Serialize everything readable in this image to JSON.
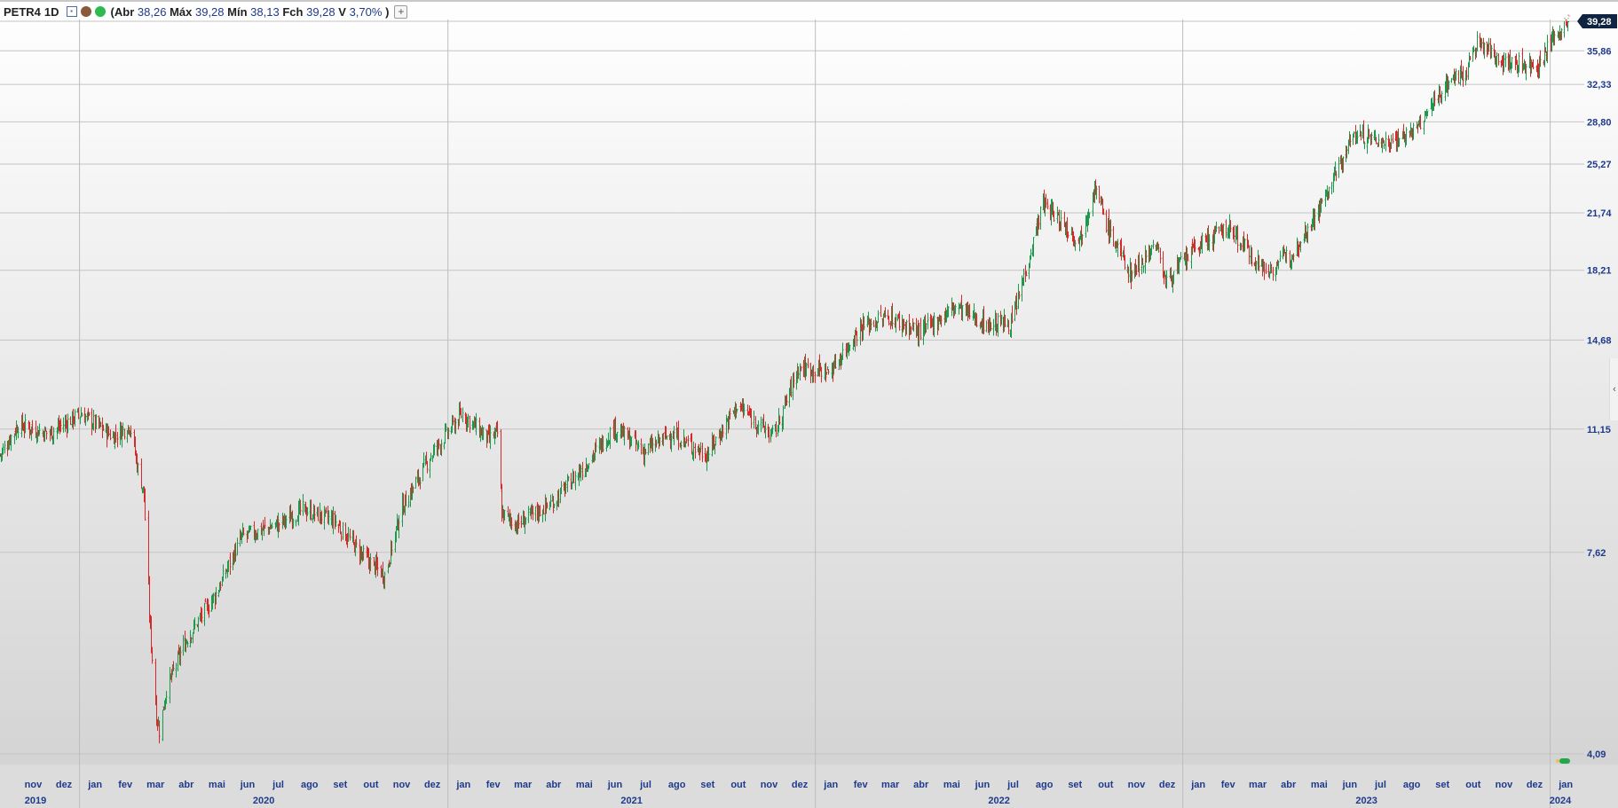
{
  "header": {
    "symbol": "PETR4",
    "timeframe": "1D",
    "open_paren": "(",
    "open_label": "Abr",
    "open_value": "38,26",
    "high_label": "Máx",
    "high_value": "39,28",
    "low_label": "Mín",
    "low_value": "38,13",
    "close_label": "Fch",
    "close_value": "39,28",
    "change_label": "V",
    "change_value": "3,70%",
    "close_paren": ")",
    "plus_label": "+",
    "icons": [
      "chart-type-icon",
      "settings-brown-icon",
      "live-green-icon"
    ],
    "colors": {
      "icon_brown": "#8a5a3b",
      "icon_green": "#2dbb4f"
    }
  },
  "chart_data": {
    "type": "candlestick",
    "title": "",
    "xlabel": "",
    "ylabel": "",
    "y_scale": "log",
    "ylim": [
      4.09,
      39.28
    ],
    "y_ticks": [
      "39,28",
      "35,86",
      "32,33",
      "28,80",
      "25,27",
      "21,74",
      "18,21",
      "14,68",
      "11,15",
      "7,62",
      "4,09"
    ],
    "last_price": "39,28",
    "month_labels": [
      "nov",
      "dez",
      "jan",
      "fev",
      "mar",
      "abr",
      "mai",
      "jun",
      "jul",
      "ago",
      "set",
      "out",
      "nov",
      "dez",
      "jan",
      "fev",
      "mar",
      "abr",
      "mai",
      "jun",
      "jul",
      "ago",
      "set",
      "out",
      "nov",
      "dez",
      "jan",
      "fev",
      "mar",
      "abr",
      "mai",
      "jun",
      "jul",
      "ago",
      "set",
      "out",
      "nov",
      "dez",
      "jan",
      "fev",
      "mar",
      "abr",
      "mai",
      "jun",
      "jul",
      "ago",
      "set",
      "out",
      "nov",
      "dez",
      "jan"
    ],
    "year_labels": [
      "2019",
      "2020",
      "2021",
      "2022",
      "2023",
      "2024"
    ],
    "x_start": "2019-10-14",
    "x_end": "2024-01-19",
    "grid": true,
    "colors": {
      "up": "#1a9a4a",
      "down": "#d42a2a",
      "price_tag": "#0f2440",
      "axis_text": "#1e3a8a"
    },
    "series": [
      {
        "date": "2019-10-14",
        "close": 10.3
      },
      {
        "date": "2019-11-01",
        "close": 11.3
      },
      {
        "date": "2019-12-01",
        "close": 11.0
      },
      {
        "date": "2020-01-02",
        "close": 11.7
      },
      {
        "date": "2020-02-03",
        "close": 10.9
      },
      {
        "date": "2020-02-20",
        "close": 11.3
      },
      {
        "date": "2020-02-27",
        "close": 10.0
      },
      {
        "date": "2020-03-05",
        "close": 9.1
      },
      {
        "date": "2020-03-10",
        "close": 6.3
      },
      {
        "date": "2020-03-17",
        "close": 4.6
      },
      {
        "date": "2020-03-20",
        "close": 4.4
      },
      {
        "date": "2020-03-27",
        "close": 5.0
      },
      {
        "date": "2020-04-15",
        "close": 5.8
      },
      {
        "date": "2020-05-15",
        "close": 6.7
      },
      {
        "date": "2020-06-10",
        "close": 8.0
      },
      {
        "date": "2020-07-15",
        "close": 8.3
      },
      {
        "date": "2020-08-10",
        "close": 8.7
      },
      {
        "date": "2020-09-10",
        "close": 8.4
      },
      {
        "date": "2020-10-10",
        "close": 7.5
      },
      {
        "date": "2020-10-30",
        "close": 7.1
      },
      {
        "date": "2020-11-15",
        "close": 8.7
      },
      {
        "date": "2020-12-15",
        "close": 10.3
      },
      {
        "date": "2021-01-15",
        "close": 11.7
      },
      {
        "date": "2021-02-10",
        "close": 10.8
      },
      {
        "date": "2021-02-19",
        "close": 11.0
      },
      {
        "date": "2021-02-23",
        "close": 8.6
      },
      {
        "date": "2021-03-10",
        "close": 8.3
      },
      {
        "date": "2021-04-15",
        "close": 8.9
      },
      {
        "date": "2021-05-15",
        "close": 9.9
      },
      {
        "date": "2021-06-15",
        "close": 11.2
      },
      {
        "date": "2021-07-15",
        "close": 10.4
      },
      {
        "date": "2021-08-10",
        "close": 11.0
      },
      {
        "date": "2021-09-15",
        "close": 10.3
      },
      {
        "date": "2021-10-15",
        "close": 12.0
      },
      {
        "date": "2021-11-20",
        "close": 10.9
      },
      {
        "date": "2021-12-15",
        "close": 13.5
      },
      {
        "date": "2022-01-15",
        "close": 13.3
      },
      {
        "date": "2022-02-15",
        "close": 15.3
      },
      {
        "date": "2022-03-15",
        "close": 15.8
      },
      {
        "date": "2022-04-15",
        "close": 15.0
      },
      {
        "date": "2022-05-20",
        "close": 16.3
      },
      {
        "date": "2022-06-20",
        "close": 15.4
      },
      {
        "date": "2022-07-15",
        "close": 15.5
      },
      {
        "date": "2022-08-15",
        "close": 22.4
      },
      {
        "date": "2022-09-20",
        "close": 20.0
      },
      {
        "date": "2022-10-05",
        "close": 23.5
      },
      {
        "date": "2022-10-20",
        "close": 20.5
      },
      {
        "date": "2022-11-10",
        "close": 18.0
      },
      {
        "date": "2022-12-05",
        "close": 19.8
      },
      {
        "date": "2022-12-15",
        "close": 17.6
      },
      {
        "date": "2023-01-15",
        "close": 19.6
      },
      {
        "date": "2023-02-15",
        "close": 20.8
      },
      {
        "date": "2023-03-25",
        "close": 18.1
      },
      {
        "date": "2023-04-20",
        "close": 19.3
      },
      {
        "date": "2023-05-20",
        "close": 22.5
      },
      {
        "date": "2023-06-20",
        "close": 27.8
      },
      {
        "date": "2023-07-20",
        "close": 27.0
      },
      {
        "date": "2023-08-20",
        "close": 28.0
      },
      {
        "date": "2023-09-20",
        "close": 32.5
      },
      {
        "date": "2023-10-10",
        "close": 33.8
      },
      {
        "date": "2023-10-20",
        "close": 36.7
      },
      {
        "date": "2023-11-20",
        "close": 34.5
      },
      {
        "date": "2023-12-20",
        "close": 34.3
      },
      {
        "date": "2024-01-05",
        "close": 37.5
      },
      {
        "date": "2024-01-19",
        "close": 39.28
      }
    ]
  }
}
